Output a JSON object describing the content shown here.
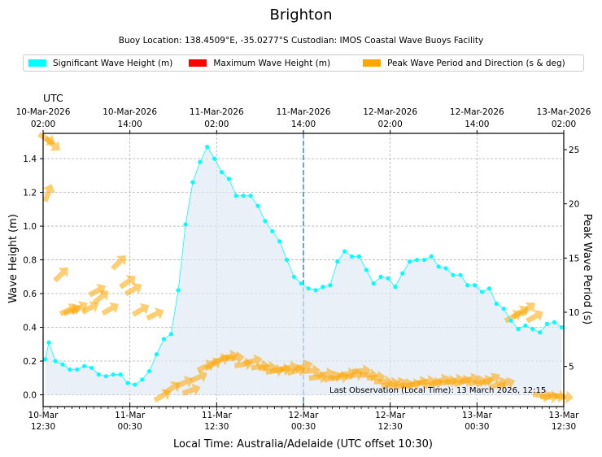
{
  "header": {
    "title": "Brighton",
    "subtitle": "Buoy Location: 138.4509°E, -35.0277°S     Custodian: IMOS Coastal Wave Buoys Facility"
  },
  "legend": [
    {
      "label": "Significant Wave Height (m)",
      "color": "#00ffff"
    },
    {
      "label": "Maximum Wave Height (m)",
      "color": "#ff0000"
    },
    {
      "label": "Peak Wave Period and Direction (s & deg)",
      "color": "#ffa500"
    }
  ],
  "chart_data": {
    "type": "line",
    "title": "Brighton",
    "xlabel": "Local Time: Australia/Adelaide (UTC offset 10:30)",
    "ylabel": "Wave Height (m)",
    "ylabel_right": "Peak Wave Period (s)",
    "top_axis_label": "UTC",
    "xlim_hours": [
      0,
      72
    ],
    "ylim": [
      -0.07,
      1.55
    ],
    "ylim_right": [
      1.3,
      26.5
    ],
    "y_ticks": [
      "0.0",
      "0.2",
      "0.4",
      "0.6",
      "0.8",
      "1.0",
      "1.2",
      "1.4"
    ],
    "y_tick_values": [
      0.0,
      0.2,
      0.4,
      0.6,
      0.8,
      1.0,
      1.2,
      1.4
    ],
    "y_right_ticks": [
      "5",
      "10",
      "15",
      "20",
      "25"
    ],
    "y_right_tick_values": [
      5,
      10,
      15,
      20,
      25
    ],
    "bottom_ticks": [
      {
        "hour": 0,
        "line1": "10-Mar",
        "line2": "12:30"
      },
      {
        "hour": 12,
        "line1": "11-Mar",
        "line2": "00:30"
      },
      {
        "hour": 24,
        "line1": "11-Mar",
        "line2": "12:30"
      },
      {
        "hour": 36,
        "line1": "12-Mar",
        "line2": "00:30"
      },
      {
        "hour": 48,
        "line1": "12-Mar",
        "line2": "12:30"
      },
      {
        "hour": 60,
        "line1": "13-Mar",
        "line2": "00:30"
      },
      {
        "hour": 72,
        "line1": "13-Mar",
        "line2": "12:30"
      }
    ],
    "top_ticks": [
      {
        "hour": 0,
        "line1": "10-Mar-2026",
        "line2": "02:00"
      },
      {
        "hour": 12,
        "line1": "10-Mar-2026",
        "line2": "14:00"
      },
      {
        "hour": 24,
        "line1": "11-Mar-2026",
        "line2": "02:00"
      },
      {
        "hour": 36,
        "line1": "11-Mar-2026",
        "line2": "14:00"
      },
      {
        "hour": 48,
        "line1": "12-Mar-2026",
        "line2": "02:00"
      },
      {
        "hour": 60,
        "line1": "12-Mar-2026",
        "line2": "14:00"
      },
      {
        "hour": 72,
        "line1": "13-Mar-2026",
        "line2": "02:00"
      }
    ],
    "vertical_marker_hour": 36,
    "annotation": "Last Observation (Local Time): 13 March 2026, 12:15",
    "series": [
      {
        "name": "Significant Wave Height (m)",
        "color": "#00ffff",
        "x": [
          0.3,
          0.8,
          1.7,
          2.7,
          3.7,
          4.7,
          5.7,
          6.7,
          7.7,
          8.7,
          9.7,
          10.7,
          11.7,
          12.7,
          13.7,
          14.7,
          15.7,
          16.7,
          17.7,
          18.7,
          19.7,
          20.7,
          21.7,
          22.7,
          23.7,
          24.7,
          25.7,
          26.7,
          27.7,
          28.7,
          29.7,
          30.7,
          31.7,
          32.7,
          33.7,
          34.7,
          35.7,
          36.7,
          37.7,
          38.7,
          39.7,
          40.7,
          41.7,
          42.7,
          43.7,
          44.7,
          45.7,
          46.7,
          47.7,
          48.7,
          49.7,
          50.7,
          51.7,
          52.7,
          53.7,
          54.7,
          55.7,
          56.7,
          57.7,
          58.7,
          59.7,
          60.7,
          61.7,
          62.7,
          63.7,
          64.7,
          65.7,
          66.7,
          67.7,
          68.7,
          69.7,
          70.7,
          71.7
        ],
        "values": [
          0.21,
          0.31,
          0.2,
          0.18,
          0.15,
          0.15,
          0.17,
          0.16,
          0.12,
          0.11,
          0.12,
          0.12,
          0.07,
          0.06,
          0.09,
          0.14,
          0.24,
          0.33,
          0.36,
          0.62,
          1.01,
          1.26,
          1.38,
          1.47,
          1.4,
          1.32,
          1.28,
          1.18,
          1.18,
          1.18,
          1.12,
          1.03,
          0.97,
          0.91,
          0.8,
          0.7,
          0.66,
          0.63,
          0.62,
          0.64,
          0.65,
          0.79,
          0.85,
          0.82,
          0.82,
          0.74,
          0.66,
          0.7,
          0.69,
          0.64,
          0.72,
          0.79,
          0.8,
          0.8,
          0.82,
          0.76,
          0.75,
          0.71,
          0.71,
          0.65,
          0.65,
          0.61,
          0.63,
          0.54,
          0.51,
          0.44,
          0.39,
          0.41,
          0.39,
          0.37,
          0.42,
          0.43,
          0.4
        ]
      },
      {
        "name": "Peak Wave Period and Direction (s & deg)",
        "color": "#ffa500",
        "x": [
          0.5,
          1.3,
          0.7,
          2.5,
          4.0,
          5.0,
          6.5,
          3.5,
          8.0,
          9.3,
          7.5,
          10.5,
          11.7,
          12.5,
          13.5,
          15.5,
          16.5,
          17.8,
          19.5,
          20.5,
          21.5,
          22.5,
          23.5,
          24.5,
          25.7,
          26.5,
          27.7,
          29.0,
          30.0,
          31.0,
          32.0,
          33.0,
          34.0,
          35.0,
          36.0,
          37.0,
          38.0,
          39.0,
          40.0,
          41.0,
          42.0,
          43.0,
          44.0,
          45.0,
          46.0,
          47.0,
          48.0,
          49.0,
          50.0,
          51.0,
          52.0,
          53.0,
          54.0,
          55.0,
          56.0,
          57.0,
          58.0,
          59.0,
          60.0,
          61.0,
          62.0,
          63.0,
          64.0,
          65.0,
          66.0,
          67.0,
          68.0,
          69.0,
          70.0,
          71.0,
          72.0
        ],
        "period": [
          26.0,
          25.5,
          21.0,
          13.5,
          10.2,
          10.4,
          10.4,
          10.2,
          11.4,
          10.3,
          12.0,
          14.6,
          12.8,
          12.1,
          10.2,
          9.8,
          2.3,
          3.0,
          3.5,
          2.8,
          4.0,
          5.0,
          5.2,
          5.6,
          5.9,
          5.8,
          5.2,
          5.5,
          5.0,
          4.9,
          4.6,
          4.7,
          4.9,
          4.6,
          5.0,
          4.6,
          4.0,
          4.3,
          4.0,
          4.0,
          4.3,
          4.2,
          4.6,
          4.2,
          4.0,
          3.6,
          3.4,
          3.4,
          3.3,
          3.3,
          3.5,
          3.6,
          3.4,
          3.7,
          3.6,
          3.7,
          3.6,
          3.8,
          3.6,
          3.6,
          3.8,
          3.4,
          3.4,
          9.6,
          10.0,
          10.3,
          9.6,
          2.3,
          2.2,
          2.3,
          2.2
        ],
        "direction_deg": [
          300,
          310,
          200,
          225,
          245,
          240,
          240,
          245,
          230,
          240,
          240,
          225,
          235,
          240,
          240,
          245,
          240,
          235,
          245,
          250,
          245,
          245,
          240,
          250,
          255,
          265,
          260,
          255,
          260,
          265,
          260,
          265,
          260,
          255,
          250,
          265,
          265,
          260,
          250,
          260,
          260,
          255,
          265,
          270,
          265,
          270,
          255,
          250,
          255,
          260,
          255,
          260,
          255,
          250,
          260,
          255,
          250,
          255,
          255,
          250,
          240,
          245,
          250,
          240,
          235,
          230,
          240,
          280,
          270,
          280,
          275
        ]
      }
    ]
  }
}
